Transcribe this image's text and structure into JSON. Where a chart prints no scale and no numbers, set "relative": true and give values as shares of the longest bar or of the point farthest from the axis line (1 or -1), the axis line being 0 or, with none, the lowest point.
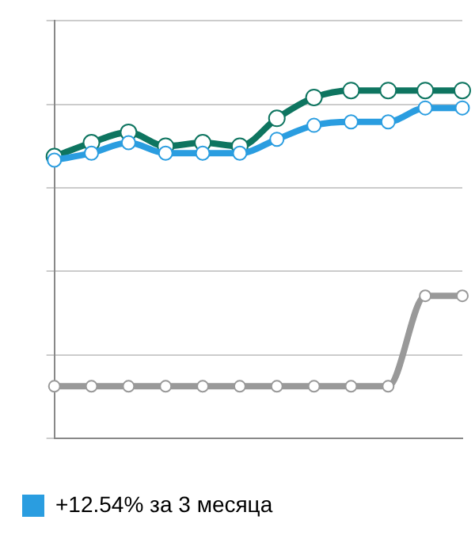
{
  "chart_data": {
    "type": "line",
    "relative": true,
    "categories": [
      null,
      null,
      null,
      null,
      null,
      null,
      null,
      null,
      null,
      null,
      null,
      null
    ],
    "series": [
      {
        "color": "#0e7560",
        "values": [
          0.81,
          0.85,
          0.88,
          0.84,
          0.85,
          0.84,
          0.92,
          0.98,
          1.0,
          1.0,
          1.0,
          1.0
        ]
      },
      {
        "name": "+12.54% за 3 месяца",
        "color": "#2a9de0",
        "values": [
          0.8,
          0.82,
          0.85,
          0.82,
          0.82,
          0.82,
          0.86,
          0.9,
          0.91,
          0.91,
          0.95,
          0.95
        ]
      },
      {
        "color": "#999999",
        "values": [
          0.15,
          0.15,
          0.15,
          0.15,
          0.15,
          0.15,
          0.15,
          0.15,
          0.15,
          0.15,
          0.41,
          0.41
        ]
      }
    ],
    "grid": "y",
    "legend": "bottom",
    "marker": "circle",
    "line_style": "solid"
  }
}
